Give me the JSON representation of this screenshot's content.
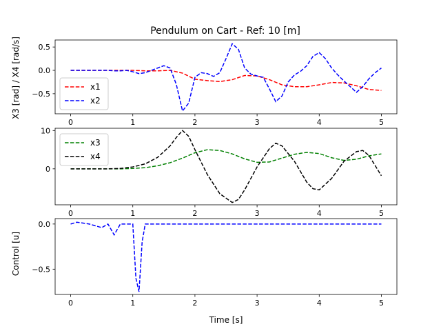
{
  "chart_data": [
    {
      "type": "line",
      "title": "Pendulum on Cart - Ref: 10 [m]",
      "xlabel": "",
      "ylabel": "X3 [rad] / X4 [rad/s]",
      "xlim": [
        -0.25,
        5.25
      ],
      "ylim": [
        -0.93,
        0.65
      ],
      "xticks": [
        0,
        1,
        2,
        3,
        4,
        5
      ],
      "yticks": [
        -0.5,
        0.0,
        0.5
      ],
      "xtick_labels": [
        "0",
        "1",
        "2",
        "3",
        "4",
        "5"
      ],
      "ytick_labels": [
        "−0.5",
        "0.0",
        "0.5"
      ],
      "legend": {
        "position": "lower-left",
        "entries": [
          "x1",
          "x2"
        ]
      },
      "series": [
        {
          "name": "x1",
          "color": "#ff0000",
          "dash": "dashed",
          "x": [
            0,
            0.2,
            0.4,
            0.6,
            0.8,
            1.0,
            1.2,
            1.4,
            1.6,
            1.8,
            2.0,
            2.2,
            2.4,
            2.6,
            2.8,
            3.0,
            3.2,
            3.4,
            3.6,
            3.8,
            4.0,
            4.2,
            4.4,
            4.6,
            4.8,
            5.0
          ],
          "y": [
            0.0,
            0.0,
            0.0,
            0.0,
            0.0,
            0.0,
            -0.01,
            -0.01,
            0.0,
            -0.06,
            -0.19,
            -0.22,
            -0.24,
            -0.2,
            -0.11,
            -0.12,
            -0.2,
            -0.31,
            -0.35,
            -0.35,
            -0.31,
            -0.26,
            -0.27,
            -0.33,
            -0.41,
            -0.43
          ]
        },
        {
          "name": "x2",
          "color": "#0000ff",
          "dash": "dashed",
          "x": [
            0,
            0.2,
            0.4,
            0.6,
            0.7,
            0.8,
            0.9,
            1.0,
            1.1,
            1.2,
            1.3,
            1.4,
            1.5,
            1.6,
            1.7,
            1.8,
            1.9,
            2.0,
            2.1,
            2.2,
            2.3,
            2.4,
            2.5,
            2.6,
            2.7,
            2.8,
            2.9,
            3.0,
            3.1,
            3.2,
            3.3,
            3.4,
            3.5,
            3.6,
            3.7,
            3.8,
            3.9,
            4.0,
            4.1,
            4.2,
            4.3,
            4.4,
            4.5,
            4.6,
            4.7,
            4.8,
            4.9,
            5.0
          ],
          "y": [
            0.0,
            0.0,
            0.0,
            0.0,
            -0.01,
            -0.01,
            0.0,
            -0.03,
            -0.07,
            -0.05,
            0.0,
            0.05,
            0.1,
            0.05,
            -0.3,
            -0.87,
            -0.7,
            -0.15,
            -0.05,
            -0.07,
            -0.13,
            -0.05,
            0.25,
            0.57,
            0.45,
            0.05,
            -0.08,
            -0.12,
            -0.15,
            -0.4,
            -0.67,
            -0.55,
            -0.25,
            -0.1,
            -0.02,
            0.1,
            0.3,
            0.38,
            0.25,
            0.05,
            -0.1,
            -0.23,
            -0.35,
            -0.47,
            -0.35,
            -0.18,
            -0.05,
            0.05
          ]
        }
      ]
    },
    {
      "type": "line",
      "title": "",
      "xlabel": "",
      "ylabel": "",
      "xlim": [
        -0.25,
        5.25
      ],
      "ylim": [
        -9.4,
        10.6
      ],
      "xticks": [
        0,
        1,
        2,
        3,
        4,
        5
      ],
      "yticks": [
        0,
        10
      ],
      "xtick_labels": [
        "0",
        "1",
        "2",
        "3",
        "4",
        "5"
      ],
      "ytick_labels": [
        "0",
        "10"
      ],
      "legend": {
        "position": "upper-left",
        "entries": [
          "x3",
          "x4"
        ]
      },
      "series": [
        {
          "name": "x3",
          "color": "#008000",
          "dash": "dashed",
          "x": [
            0,
            0.2,
            0.4,
            0.6,
            0.8,
            1.0,
            1.2,
            1.4,
            1.6,
            1.8,
            2.0,
            2.2,
            2.4,
            2.6,
            2.8,
            3.0,
            3.2,
            3.4,
            3.6,
            3.8,
            4.0,
            4.2,
            4.4,
            4.6,
            4.8,
            5.0
          ],
          "y": [
            0.0,
            0.0,
            0.0,
            0.0,
            0.0,
            0.1,
            0.3,
            0.8,
            1.6,
            2.8,
            4.2,
            5.0,
            4.8,
            3.9,
            2.6,
            1.7,
            1.8,
            2.8,
            3.8,
            4.3,
            4.0,
            2.9,
            2.2,
            2.5,
            3.4,
            3.9
          ]
        },
        {
          "name": "x4",
          "color": "#000000",
          "dash": "dashed",
          "x": [
            0,
            0.2,
            0.4,
            0.6,
            0.8,
            1.0,
            1.2,
            1.4,
            1.6,
            1.7,
            1.8,
            1.9,
            2.0,
            2.2,
            2.4,
            2.6,
            2.7,
            2.8,
            3.0,
            3.2,
            3.3,
            3.4,
            3.6,
            3.8,
            3.9,
            4.0,
            4.2,
            4.4,
            4.6,
            4.7,
            4.8,
            5.0
          ],
          "y": [
            0.0,
            0.0,
            0.0,
            0.0,
            0.1,
            0.5,
            1.3,
            3.0,
            6.0,
            8.2,
            10.0,
            8.5,
            5.0,
            -1.5,
            -6.5,
            -8.8,
            -8.0,
            -5.5,
            0.5,
            5.3,
            6.7,
            6.0,
            2.0,
            -3.5,
            -5.2,
            -5.5,
            -2.5,
            2.0,
            4.5,
            4.8,
            3.5,
            -1.8
          ]
        }
      ]
    },
    {
      "type": "line",
      "title": "",
      "xlabel": "Time [s]",
      "ylabel": "Control [u]",
      "xlim": [
        -0.25,
        5.25
      ],
      "ylim": [
        -0.78,
        0.06
      ],
      "xticks": [
        0,
        1,
        2,
        3,
        4,
        5
      ],
      "yticks": [
        -0.5,
        0.0
      ],
      "xtick_labels": [
        "0",
        "1",
        "2",
        "3",
        "4",
        "5"
      ],
      "ytick_labels": [
        "−0.5",
        "0.0"
      ],
      "series": [
        {
          "color": "#0000ff",
          "dash": "dashed",
          "x": [
            0,
            0.1,
            0.2,
            0.3,
            0.4,
            0.5,
            0.6,
            0.7,
            0.8,
            0.9,
            1.0,
            1.05,
            1.1,
            1.15,
            1.2,
            1.3,
            1.5,
            2.0,
            3.0,
            4.0,
            5.0
          ],
          "y": [
            0.0,
            0.02,
            0.01,
            0.0,
            -0.02,
            -0.04,
            0.0,
            -0.12,
            0.0,
            0.0,
            0.0,
            -0.6,
            -0.75,
            -0.2,
            0.0,
            0.0,
            0.0,
            0.0,
            0.0,
            0.0,
            0.0
          ]
        }
      ]
    }
  ]
}
